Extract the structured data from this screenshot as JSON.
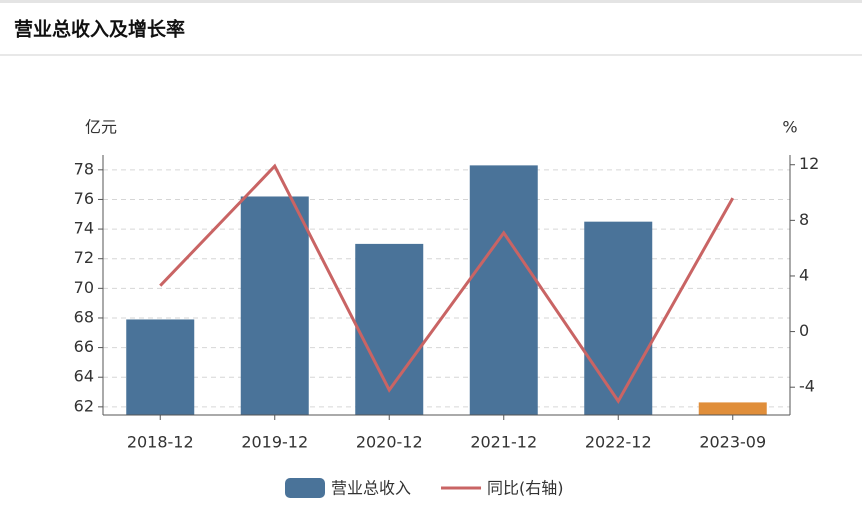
{
  "chart_data": {
    "type": "bar",
    "title": "营业总收入及增长率",
    "y_label": "亿元",
    "y2_label": "%",
    "categories": [
      "2018-12",
      "2019-12",
      "2020-12",
      "2021-12",
      "2022-12",
      "2023-09"
    ],
    "series": [
      {
        "name": "营业总收入",
        "type": "bar",
        "color": "#4a7399",
        "colors": [
          "#4a7399",
          "#4a7399",
          "#4a7399",
          "#4a7399",
          "#4a7399",
          "#e08e3a"
        ],
        "values": [
          67.9,
          76.2,
          73.0,
          78.3,
          74.5,
          62.3
        ]
      },
      {
        "name": "同比(右轴)",
        "type": "line",
        "axis": "y2",
        "color": "#c96464",
        "values": [
          3.3,
          11.9,
          -4.2,
          7.1,
          -5.0,
          9.6
        ]
      }
    ],
    "ylim": [
      61.45,
      79
    ],
    "yticks": [
      62,
      64,
      66,
      68,
      70,
      72,
      74,
      76,
      78
    ],
    "y2lim": [
      -6,
      12.7
    ],
    "y2ticks": [
      -4,
      0,
      4,
      8,
      12
    ],
    "grid": true
  }
}
